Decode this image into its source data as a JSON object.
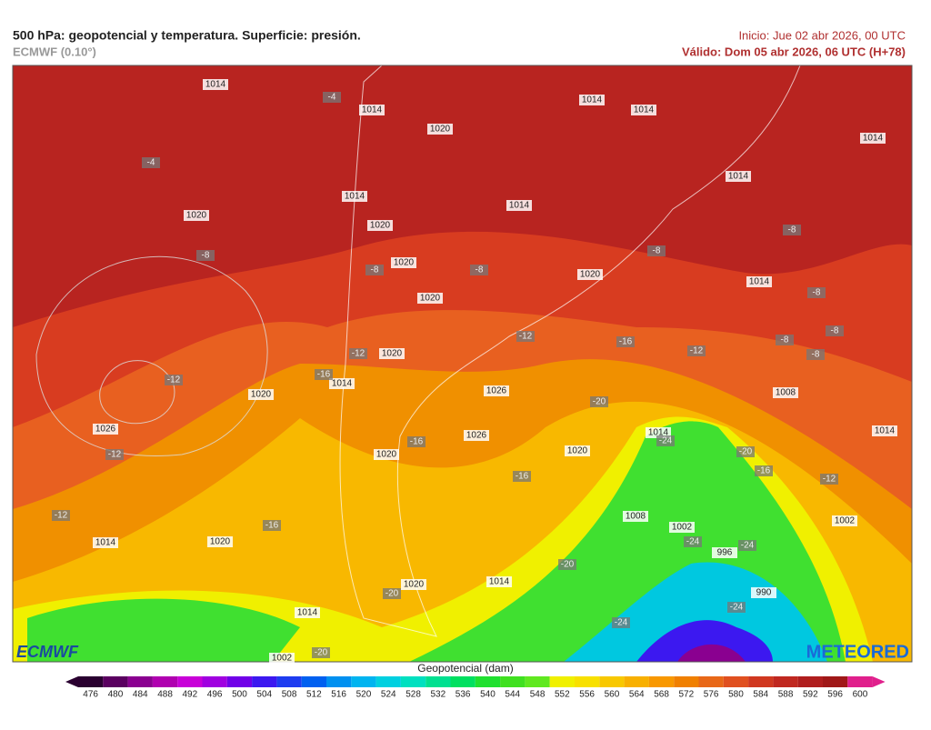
{
  "header": {
    "title": "500 hPa: geopotencial y temperatura. Superficie: presión.",
    "model": "ECMWF (0.10°)",
    "init": "Inicio: Jue 02 abr 2026, 00 UTC",
    "valid": "Válido: Dom 05 abr 2026, 06 UTC (H+78)"
  },
  "logos": {
    "left": "ECMWF",
    "right": "METEORED"
  },
  "map": {
    "isobar_labels": [
      1014,
      1014,
      1020,
      1014,
      1014,
      1014,
      1014,
      1014,
      1020,
      1020,
      1014,
      1020,
      1020,
      1014,
      1020,
      1020,
      1014,
      1020,
      1026,
      1008,
      1026,
      1026,
      1020,
      1020,
      1014,
      1014,
      1008,
      1002,
      996,
      1002,
      990,
      1014,
      1020,
      1020,
      1014,
      1014,
      1002
    ],
    "temperature_labels": [
      -4,
      -4,
      -8,
      -8,
      -8,
      -8,
      -8,
      -8,
      -8,
      -8,
      -8,
      -12,
      -16,
      -12,
      -12,
      -16,
      -12,
      -20,
      -12,
      -16,
      -24,
      -20,
      -16,
      -12,
      -16,
      -12,
      -16,
      -20,
      -24,
      -24,
      -24,
      -24,
      -20,
      -20
    ]
  },
  "colorbar": {
    "label": "Geopotencial (dam)",
    "ticks": [
      476,
      480,
      484,
      488,
      492,
      496,
      500,
      504,
      508,
      512,
      516,
      520,
      524,
      528,
      532,
      536,
      540,
      544,
      548,
      552,
      556,
      560,
      564,
      568,
      572,
      576,
      580,
      584,
      588,
      592,
      596,
      600
    ],
    "colors": [
      "#2a0030",
      "#5a0060",
      "#8a0090",
      "#b000b0",
      "#c800d8",
      "#a000e0",
      "#7000e8",
      "#3c18f0",
      "#1e3cf0",
      "#0060f0",
      "#0090f0",
      "#00b4f0",
      "#00d0e0",
      "#00e0c0",
      "#00e090",
      "#00e060",
      "#20e030",
      "#40e020",
      "#60e820",
      "#f0f000",
      "#f8e000",
      "#f8c800",
      "#f8b000",
      "#f89800",
      "#f08000",
      "#e86818",
      "#e05020",
      "#d03820",
      "#c02820",
      "#b01e1e",
      "#a01818",
      "#e0208c"
    ]
  }
}
